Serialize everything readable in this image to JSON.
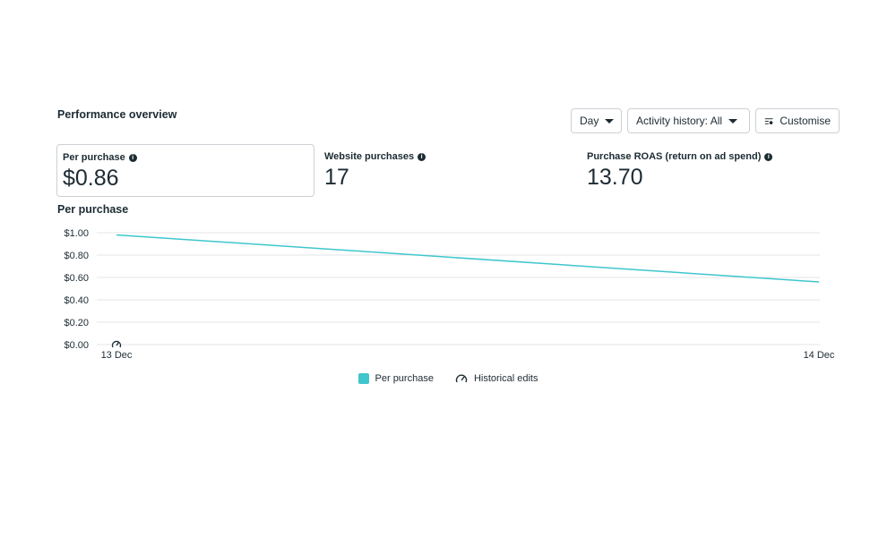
{
  "header": {
    "title": "Performance overview",
    "day_label": "Day",
    "activity_label": "Activity history: All",
    "customise_label": "Customise"
  },
  "metrics": [
    {
      "label": "Per purchase",
      "value": "$0.86"
    },
    {
      "label": "Website purchases",
      "value": "17"
    },
    {
      "label": "Purchase ROAS (return on ad spend)",
      "value": "13.70"
    }
  ],
  "chart_title": "Per purchase",
  "colors": {
    "series": "#3fc6cd",
    "grid": "#e4e6eb"
  },
  "legend": {
    "series_label": "Per purchase",
    "edits_label": "Historical edits",
    "edits_icon": "gauge-icon"
  },
  "chart_data": {
    "type": "line",
    "x": [
      "13 Dec",
      "14 Dec"
    ],
    "series": [
      {
        "name": "Per purchase",
        "values": [
          0.98,
          0.56
        ]
      }
    ],
    "ylim": [
      0,
      1
    ],
    "yticks": [
      "$0.00",
      "$0.20",
      "$0.40",
      "$0.60",
      "$0.80",
      "$1.00"
    ],
    "grid": true,
    "legend_position": "bottom"
  }
}
